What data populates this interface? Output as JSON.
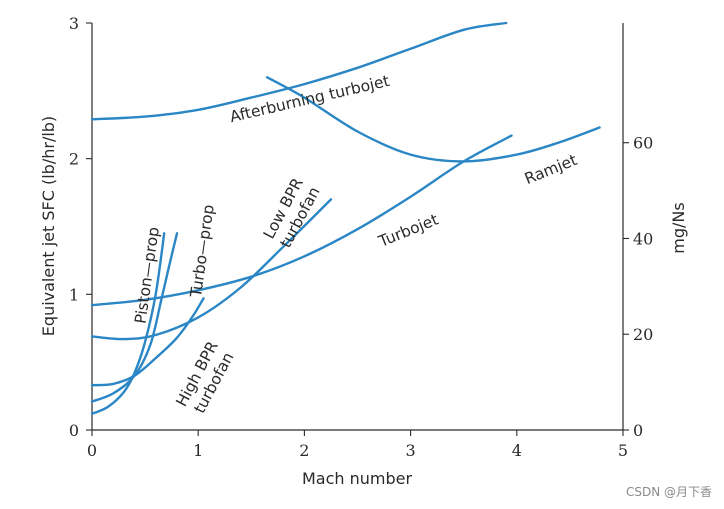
{
  "chart_data": {
    "type": "line",
    "xlabel": "Mach number",
    "ylabel": "Equivalent jet SFC (lb/hr/lb)",
    "y2label": "mg/Ns",
    "xlim": [
      0,
      5
    ],
    "ylim": [
      0,
      3
    ],
    "y2lim": [
      0,
      85
    ],
    "xticks": [
      "0",
      "1",
      "2",
      "3",
      "4",
      "5"
    ],
    "yticks": [
      "0",
      "1",
      "2",
      "3"
    ],
    "y2ticks": [
      {
        "value": 0,
        "label": "0"
      },
      {
        "value": 20,
        "label": "20"
      },
      {
        "value": 40,
        "label": "40"
      },
      {
        "value": 60,
        "label": "60"
      }
    ],
    "grid": false,
    "series_color": "#2b86c5",
    "series": [
      {
        "name": "Piston—prop",
        "label_lines": [
          "Piston—prop"
        ],
        "label_at": [
          0.52,
          1.14
        ],
        "label_rotate": -82,
        "points": [
          [
            0,
            0.12
          ],
          [
            0.15,
            0.17
          ],
          [
            0.3,
            0.28
          ],
          [
            0.4,
            0.42
          ],
          [
            0.5,
            0.65
          ],
          [
            0.6,
            1.0
          ],
          [
            0.68,
            1.45
          ]
        ]
      },
      {
        "name": "Turbo—prop",
        "label_lines": [
          "Turbo—prop"
        ],
        "label_at": [
          1.04,
          1.32
        ],
        "label_rotate": -82,
        "points": [
          [
            0,
            0.21
          ],
          [
            0.2,
            0.27
          ],
          [
            0.4,
            0.4
          ],
          [
            0.55,
            0.63
          ],
          [
            0.65,
            0.95
          ],
          [
            0.73,
            1.22
          ],
          [
            0.8,
            1.45
          ]
        ]
      },
      {
        "name": "High BPR turbofan",
        "label_lines": [
          "High BPR",
          "turbofan"
        ],
        "label_at": [
          1.07,
          0.38
        ],
        "label_rotate": -62,
        "points": [
          [
            0,
            0.33
          ],
          [
            0.2,
            0.34
          ],
          [
            0.4,
            0.4
          ],
          [
            0.6,
            0.53
          ],
          [
            0.8,
            0.68
          ],
          [
            0.95,
            0.84
          ],
          [
            1.05,
            0.97
          ]
        ]
      },
      {
        "name": "Low BPR turbofan",
        "label_lines": [
          "Low BPR",
          "turbofan"
        ],
        "label_at": [
          1.88,
          1.6
        ],
        "label_rotate": -62,
        "points": [
          [
            0,
            0.69
          ],
          [
            0.3,
            0.67
          ],
          [
            0.6,
            0.7
          ],
          [
            1.0,
            0.83
          ],
          [
            1.4,
            1.05
          ],
          [
            1.8,
            1.35
          ],
          [
            2.25,
            1.7
          ]
        ]
      },
      {
        "name": "Turbojet",
        "label_lines": [
          "Turbojet"
        ],
        "label_at": [
          2.98,
          1.47
        ],
        "label_rotate": -22,
        "points": [
          [
            0,
            0.92
          ],
          [
            0.5,
            0.96
          ],
          [
            1.0,
            1.03
          ],
          [
            1.5,
            1.13
          ],
          [
            2.0,
            1.28
          ],
          [
            2.5,
            1.48
          ],
          [
            3.0,
            1.72
          ],
          [
            3.5,
            1.98
          ],
          [
            3.95,
            2.17
          ]
        ]
      },
      {
        "name": "Afterburning turbojet",
        "label_lines": [
          "Afterburning turbojet"
        ],
        "label_at": [
          2.05,
          2.44
        ],
        "label_rotate": -13,
        "points": [
          [
            0,
            2.29
          ],
          [
            0.5,
            2.31
          ],
          [
            1.0,
            2.36
          ],
          [
            1.5,
            2.45
          ],
          [
            2.0,
            2.55
          ],
          [
            2.5,
            2.67
          ],
          [
            3.0,
            2.81
          ],
          [
            3.5,
            2.95
          ],
          [
            3.9,
            3.0
          ]
        ]
      },
      {
        "name": "Ramjet",
        "label_lines": [
          "Ramjet"
        ],
        "label_at": [
          4.32,
          1.92
        ],
        "label_rotate": -22,
        "points": [
          [
            1.65,
            2.6
          ],
          [
            2.0,
            2.45
          ],
          [
            2.5,
            2.2
          ],
          [
            3.0,
            2.03
          ],
          [
            3.5,
            1.98
          ],
          [
            4.0,
            2.03
          ],
          [
            4.4,
            2.12
          ],
          [
            4.78,
            2.23
          ]
        ]
      }
    ]
  },
  "watermark": "CSDN @月下香"
}
